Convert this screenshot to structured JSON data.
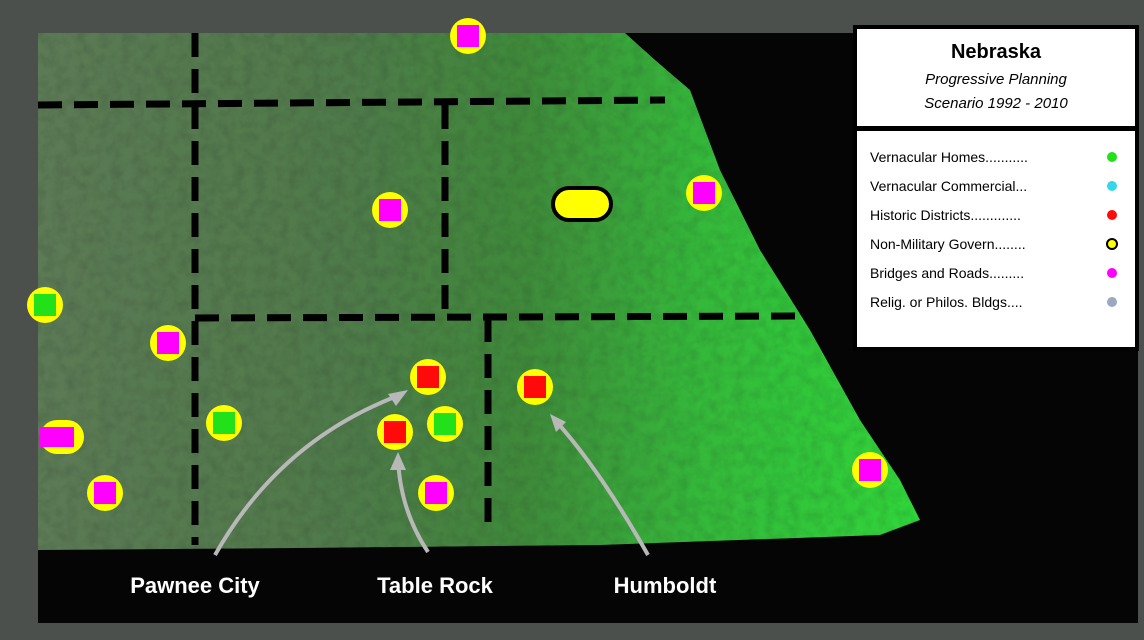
{
  "legend": {
    "title": "Nebraska",
    "subtitle": "Progressive Planning",
    "period": "Scenario 1992 - 2010",
    "entries": [
      {
        "label": "Vernacular Homes...........",
        "color": "#22e01a"
      },
      {
        "label": "Vernacular Commercial...",
        "color": "#33d8e8"
      },
      {
        "label": "Historic Districts.............",
        "color": "#ff0a0a"
      },
      {
        "label": "Non-Military Govern........",
        "color": "#ffff00"
      },
      {
        "label": "Bridges and Roads.........",
        "color": "#ff00ff"
      },
      {
        "label": "Relig. or Philos. Bldgs....",
        "color": "#9aa8c0"
      }
    ]
  },
  "places": [
    "Pawnee City",
    "Table Rock",
    "Humboldt"
  ]
}
